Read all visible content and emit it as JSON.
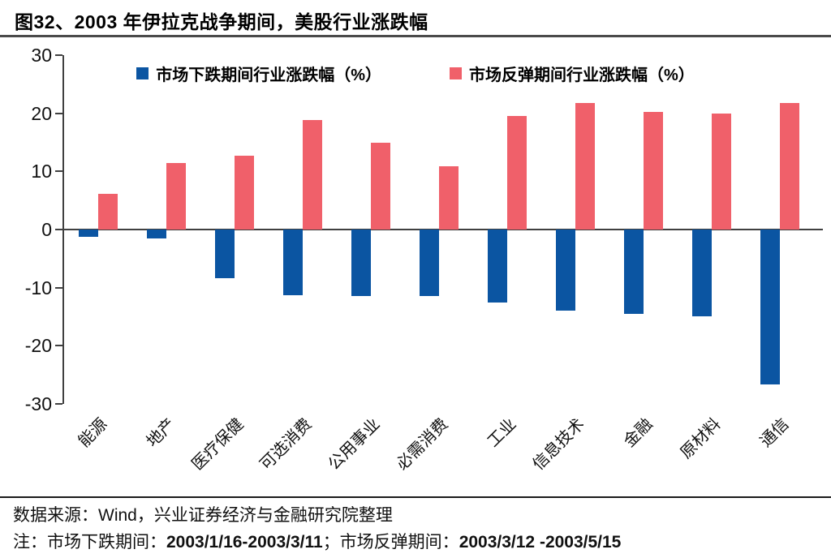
{
  "title": "图32、2003 年伊拉克战争期间，美股行业涨跌幅",
  "legend": [
    {
      "label": "市场下跌期间行业涨跌幅（%）",
      "color": "#0b55a2"
    },
    {
      "label": "市场反弹期间行业涨跌幅（%）",
      "color": "#f0606a"
    }
  ],
  "chart_data": {
    "type": "bar",
    "title": "图32、2003 年伊拉克战争期间，美股行业涨跌幅",
    "categories": [
      "能源",
      "地产",
      "医疗保健",
      "可选消费",
      "公用事业",
      "必需消费",
      "工业",
      "信息技术",
      "金融",
      "原材料",
      "通信"
    ],
    "series": [
      {
        "name": "市场下跌期间行业涨跌幅（%）",
        "color": "#0b55a2",
        "values": [
          -1.3,
          -1.5,
          -8.4,
          -11.3,
          -11.5,
          -11.5,
          -12.6,
          -14.0,
          -14.5,
          -14.9,
          -26.6
        ]
      },
      {
        "name": "市场反弹期间行业涨跌幅（%）",
        "color": "#f0606a",
        "values": [
          6.1,
          11.4,
          12.7,
          18.8,
          14.9,
          10.9,
          19.5,
          21.7,
          20.2,
          20.0,
          21.7
        ]
      }
    ],
    "xlabel": "",
    "ylabel": "",
    "ylim": [
      -30,
      30
    ],
    "yticks": [
      30,
      20,
      10,
      0,
      -10,
      -20,
      -30
    ],
    "grid": false,
    "legend_position": "top"
  },
  "footer": {
    "source_prefix": "数据来源：",
    "source_text": "Wind，兴业证券经济与金融研究院整理",
    "note_prefix": "注：市场下跌期间：",
    "note_period1": "2003/1/16-2003/3/11",
    "note_mid": "；市场反弹期间：",
    "note_period2": "2003/3/12 -2003/5/15"
  }
}
